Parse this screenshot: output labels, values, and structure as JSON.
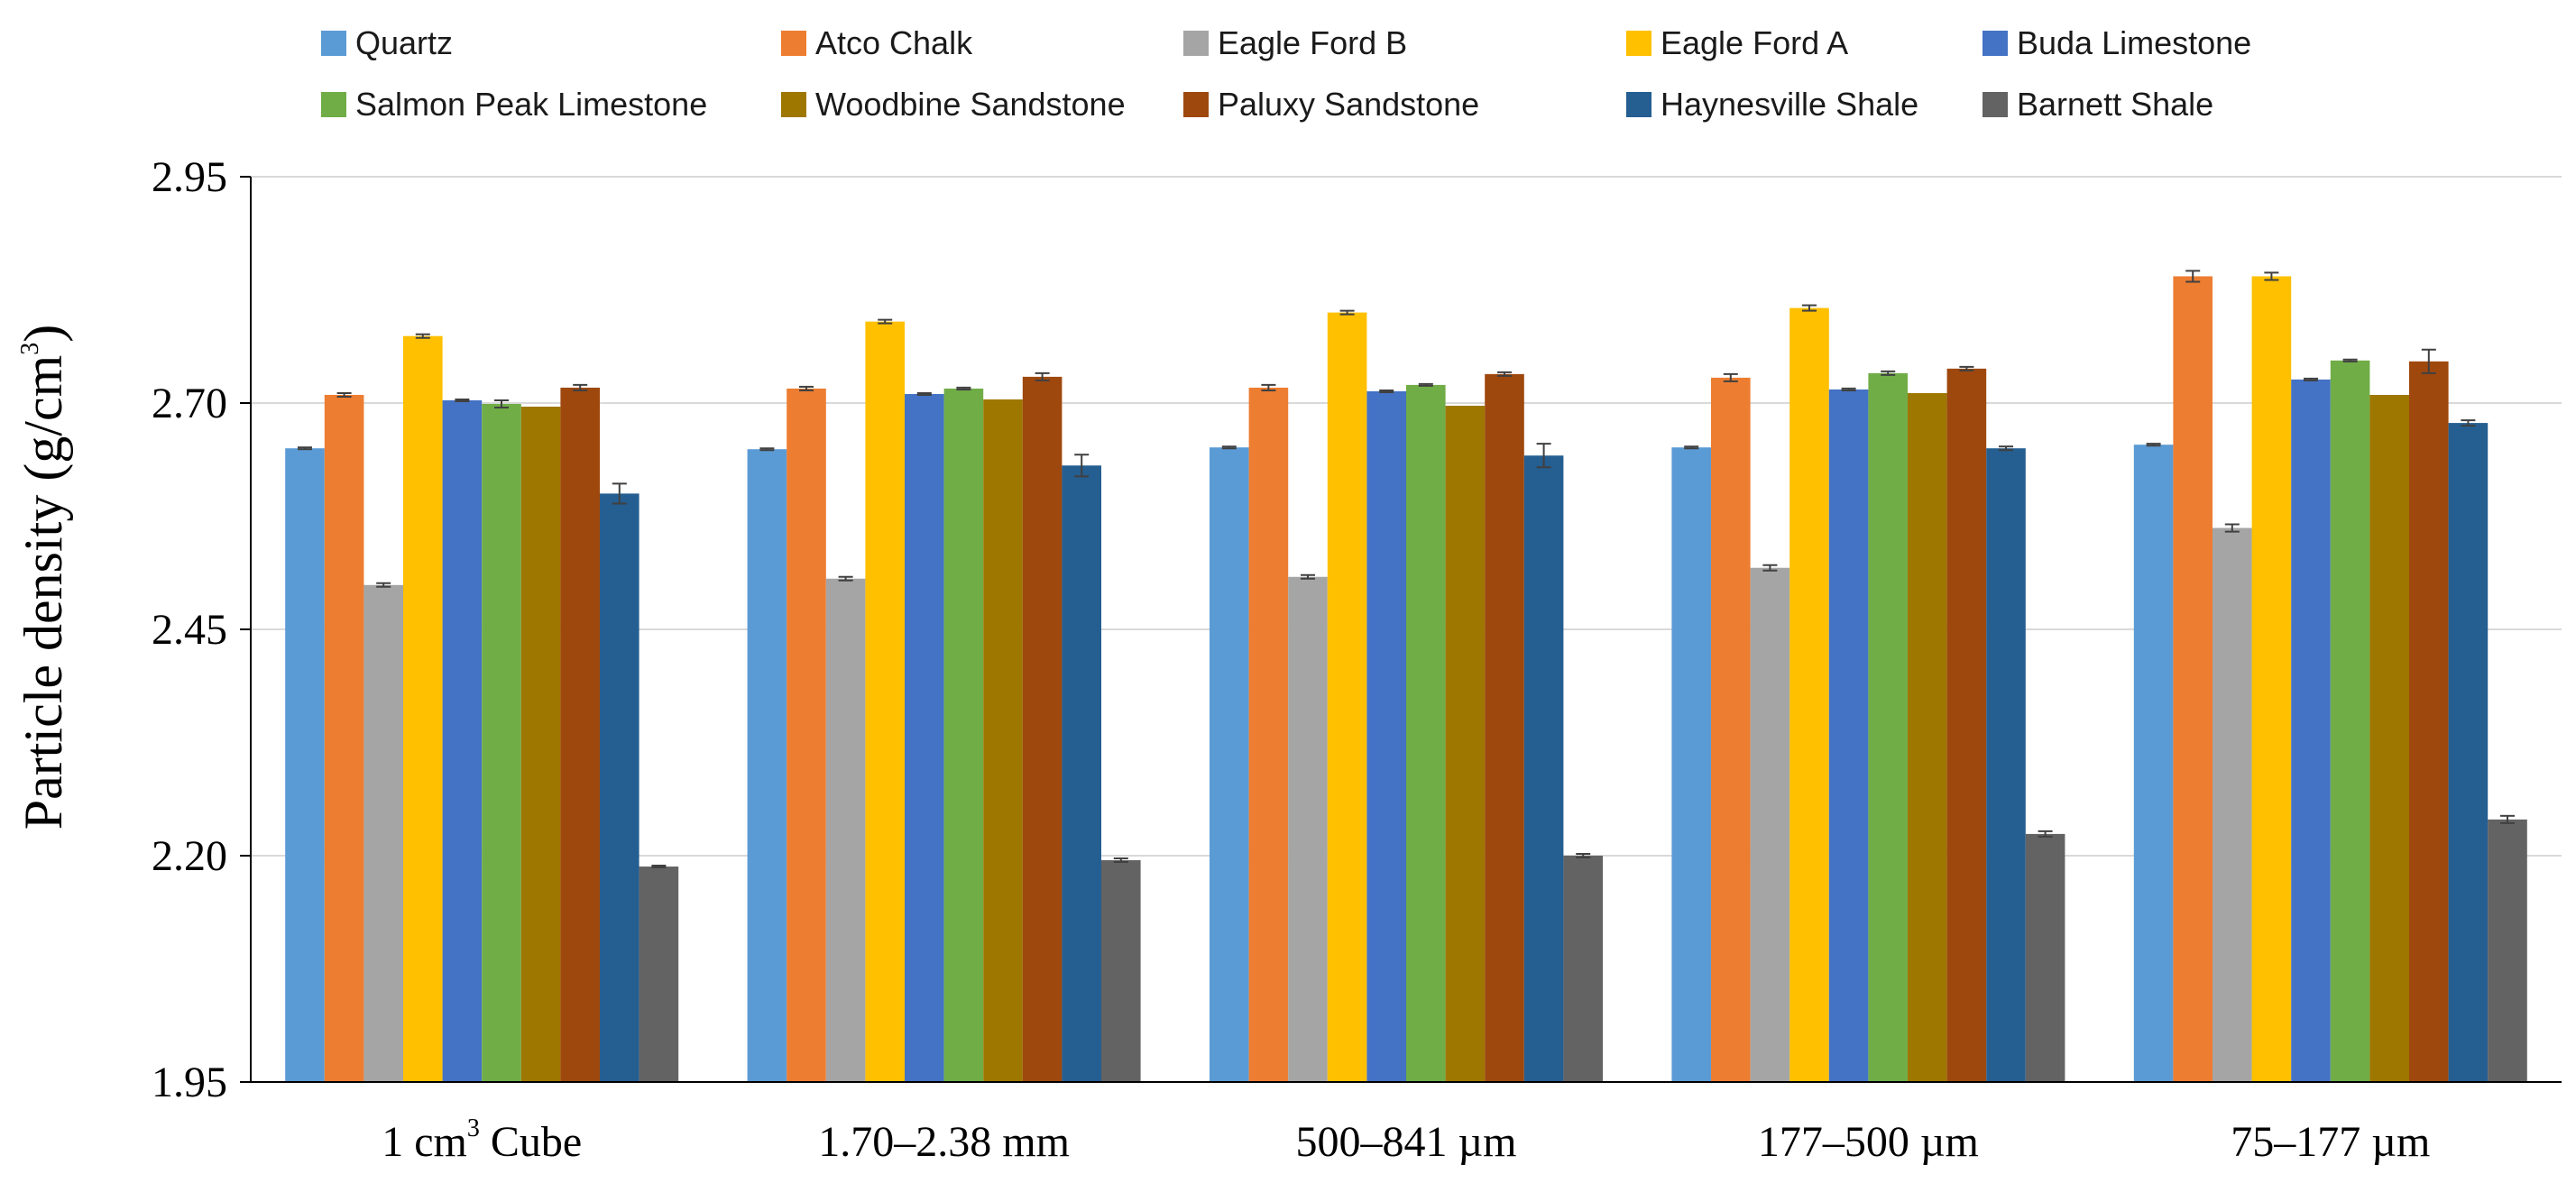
{
  "chart_data": {
    "type": "bar",
    "title": "",
    "xlabel": "",
    "ylabel": {
      "text": "Particle density (g/cm",
      "superscript": "3",
      "suffix": ")"
    },
    "ylim": [
      1.95,
      2.95
    ],
    "yticks": [
      "1.95",
      "2.20",
      "2.45",
      "2.70",
      "2.95"
    ],
    "grid": "horizontal",
    "legend_position": "top",
    "categories": [
      {
        "label": "1 cm",
        "superscript": "3",
        "suffix": " Cube"
      },
      {
        "label": "1.70–2.38 mm",
        "superscript": "",
        "suffix": ""
      },
      {
        "label": "500–841 µm",
        "superscript": "",
        "suffix": ""
      },
      {
        "label": "177–500 µm",
        "superscript": "",
        "suffix": ""
      },
      {
        "label": "75–177 µm",
        "superscript": "",
        "suffix": ""
      }
    ],
    "series": [
      {
        "name": "Quartz",
        "color": "#5B9BD5",
        "values": [
          2.65,
          2.649,
          2.651,
          2.651,
          2.654
        ],
        "errors": [
          0.001,
          0.001,
          0.001,
          0.001,
          0.001
        ]
      },
      {
        "name": "Atco Chalk",
        "color": "#ED7D31",
        "values": [
          2.709,
          2.716,
          2.717,
          2.728,
          2.84
        ],
        "errors": [
          0.002,
          0.002,
          0.003,
          0.004,
          0.006
        ]
      },
      {
        "name": "Eagle Ford B",
        "color": "#A5A5A5",
        "values": [
          2.499,
          2.506,
          2.508,
          2.518,
          2.562
        ],
        "errors": [
          0.002,
          0.002,
          0.002,
          0.003,
          0.004
        ]
      },
      {
        "name": "Eagle Ford A",
        "color": "#FFC000",
        "values": [
          2.774,
          2.79,
          2.8,
          2.805,
          2.84
        ],
        "errors": [
          0.002,
          0.002,
          0.002,
          0.003,
          0.004
        ]
      },
      {
        "name": "Buda Limestone",
        "color": "#4472C4",
        "values": [
          2.703,
          2.71,
          2.713,
          2.715,
          2.726
        ],
        "errors": [
          0.001,
          0.001,
          0.001,
          0.001,
          0.001
        ]
      },
      {
        "name": "Salmon Peak Limestone",
        "color": "#70AD47",
        "values": [
          2.699,
          2.716,
          2.72,
          2.733,
          2.747
        ],
        "errors": [
          0.004,
          0.001,
          0.001,
          0.002,
          0.001
        ]
      },
      {
        "name": "Woodbine Sandstone",
        "color": "#9E7700",
        "values": [
          2.696,
          2.704,
          2.697,
          2.711,
          2.709
        ],
        "errors": [
          0,
          0,
          0,
          0,
          0
        ]
      },
      {
        "name": "Paluxy Sandstone",
        "color": "#9E480E",
        "values": [
          2.717,
          2.729,
          2.732,
          2.738,
          2.746
        ],
        "errors": [
          0.003,
          0.004,
          0.002,
          0.002,
          0.013
        ]
      },
      {
        "name": "Haynesville Shale",
        "color": "#255E91",
        "values": [
          2.6,
          2.631,
          2.642,
          2.65,
          2.678
        ],
        "errors": [
          0.011,
          0.012,
          0.013,
          0.002,
          0.003
        ]
      },
      {
        "name": "Barnett  Shale",
        "color": "#636363",
        "values": [
          2.188,
          2.195,
          2.2,
          2.224,
          2.24
        ],
        "errors": [
          0.001,
          0.002,
          0.002,
          0.003,
          0.004
        ]
      }
    ]
  }
}
